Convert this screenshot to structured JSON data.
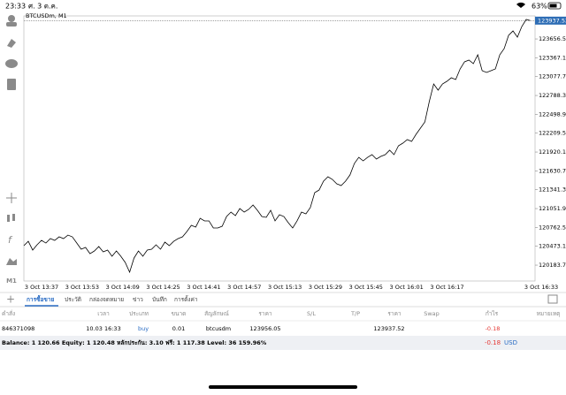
{
  "status_bar": {
    "time": "23:33",
    "date": "ศ. 3 ต.ค.",
    "battery": "63%"
  },
  "toolbar": {
    "timeframe": "M1"
  },
  "chart_data": {
    "type": "line",
    "title": "BTCUSDm, M1",
    "color": "#000000",
    "xticks": [
      "3 Oct 13:37",
      "3 Oct 13:53",
      "3 Oct 14:09",
      "3 Oct 14:25",
      "3 Oct 14:41",
      "3 Oct 14:57",
      "3 Oct 15:13",
      "3 Oct 15:29",
      "3 Oct 15:45",
      "3 Oct 16:01",
      "3 Oct 16:17",
      "3 Oct 16:33"
    ],
    "values": [
      120483,
      120550,
      120415,
      120496,
      120564,
      120523,
      120591,
      120564,
      120618,
      120591,
      120645,
      120618,
      120523,
      120428,
      120455,
      120360,
      120401,
      120469,
      120388,
      120415,
      120320,
      120401,
      120320,
      120225,
      120076,
      120293,
      120401,
      120320,
      120415,
      120428,
      120496,
      120428,
      120537,
      120483,
      120550,
      120591,
      120618,
      120700,
      120795,
      120768,
      120903,
      120863,
      120863,
      120754,
      120754,
      120781,
      120930,
      120998,
      120944,
      121052,
      120998,
      121039,
      121107,
      121025,
      120930,
      120917,
      121025,
      120863,
      120957,
      120930,
      120835,
      120754,
      120863,
      120998,
      120971,
      121066,
      121297,
      121337,
      121473,
      121541,
      121500,
      121432,
      121405,
      121473,
      121568,
      121744,
      121839,
      121785,
      121839,
      121880,
      121812,
      121853,
      121880,
      121948,
      121880,
      122016,
      122056,
      122111,
      122083,
      122192,
      122287,
      122382,
      122694,
      122965,
      122870,
      122965,
      123006,
      123060,
      123033,
      123196,
      123305,
      123332,
      123277,
      123413,
      123169,
      123142,
      123169,
      123196,
      123413,
      123508,
      123712,
      123779,
      123684,
      123847,
      123956,
      123937.52
    ],
    "ylim": [
      119940,
      124010
    ],
    "yticks": [
      {
        "value": 123656.5,
        "label": "123656.50"
      },
      {
        "value": 123367.1,
        "label": "123367.10"
      },
      {
        "value": 123077.7,
        "label": "123077.70"
      },
      {
        "value": 122788.3,
        "label": "122788.30"
      },
      {
        "value": 122498.9,
        "label": "122498.90"
      },
      {
        "value": 122209.5,
        "label": "122209.50"
      },
      {
        "value": 121920.1,
        "label": "121920.10"
      },
      {
        "value": 121630.7,
        "label": "121630.70"
      },
      {
        "value": 121341.3,
        "label": "121341.30"
      },
      {
        "value": 121051.9,
        "label": "121051.90"
      },
      {
        "value": 120762.5,
        "label": "120762.50"
      },
      {
        "value": 120473.1,
        "label": "120473.10"
      },
      {
        "value": 120183.7,
        "label": "120183.70"
      }
    ],
    "current_price": 123937.52
  },
  "tabs": [
    "การซื้อขาย",
    "ประวัติ",
    "กล่องจดหมาย",
    "ข่าว",
    "บันทึก",
    "การตั้งค่า"
  ],
  "orders": {
    "columns": [
      "คำสั่ง",
      "เวลา",
      "ประเภท",
      "ขนาด",
      "สัญลักษณ์",
      "ราคา",
      "S/L",
      "T/P",
      "ราคา",
      "Swap",
      "กำไร",
      "หมายเหตุ"
    ],
    "rows": [
      {
        "order": 846371098,
        "time": "10.03 16:33",
        "type": "buy",
        "size": 0.01,
        "symbol": "btcusdm",
        "open_price": 123956.05,
        "price": 123937.52,
        "profit": -0.18
      }
    ]
  },
  "summary": {
    "text": "Balance: 1 120.66 Equity: 1 120.48 หลักประกัน: 3.10 ฟรี: 1 117.38 Level: 36 159.96%",
    "profit": -0.18,
    "currency": "USD"
  }
}
